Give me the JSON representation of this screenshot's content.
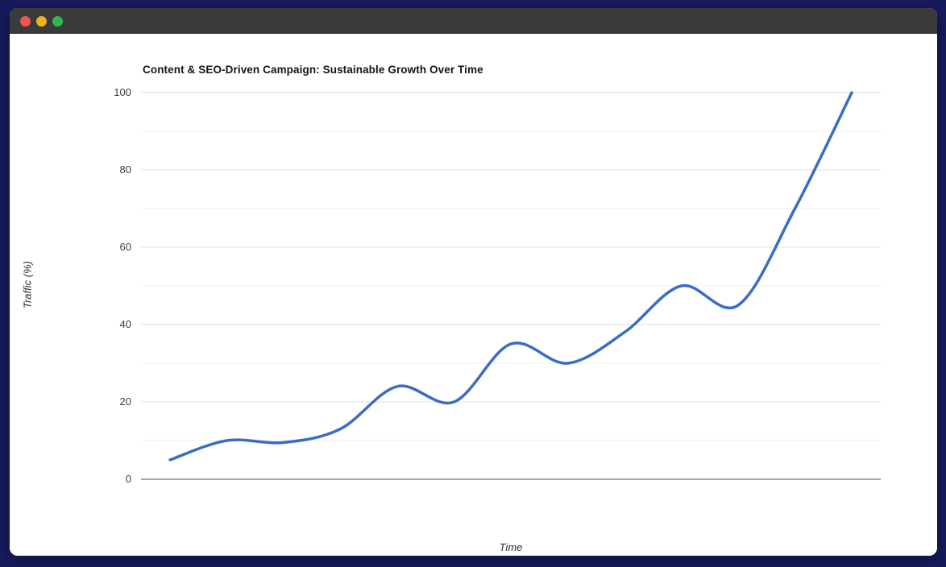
{
  "window": {
    "titlebar": {
      "buttons": [
        {
          "name": "close",
          "color": "#f0554e"
        },
        {
          "name": "minimize",
          "color": "#f2b01e"
        },
        {
          "name": "maximize",
          "color": "#2fb750"
        }
      ],
      "background": "#3a3a3c"
    },
    "frame_color": "#171b5e",
    "body_color": "#ffffff"
  },
  "chart_data": {
    "type": "line",
    "title": "Content & SEO-Driven Campaign: Sustainable Growth Over Time",
    "xlabel": "Time",
    "ylabel": "Traffic (%)",
    "x": [
      1,
      2,
      3,
      4,
      5,
      6,
      7,
      8,
      9,
      10,
      11,
      12,
      13
    ],
    "series": [
      {
        "name": "Traffic (%)",
        "values": [
          5,
          10,
          9.5,
          13,
          24,
          20,
          35,
          30,
          38,
          50,
          45,
          70,
          100
        ],
        "color": "#3b6cc5",
        "line_width": 3.5,
        "smoothing": "catmull-rom",
        "markers": "none"
      }
    ],
    "ylim": [
      0,
      100
    ],
    "yticks": [
      0,
      20,
      40,
      60,
      80,
      100
    ],
    "minor_grid_step": 10,
    "x_tick_labels_visible": false,
    "grid": "horizontal",
    "legend_position": "none",
    "colors": {
      "major_gridline": "#e2e2e2",
      "minor_gridline": "#efefef",
      "zero_axis_line": "#8c8c8c",
      "tick_label": "#3d3d3d"
    }
  }
}
